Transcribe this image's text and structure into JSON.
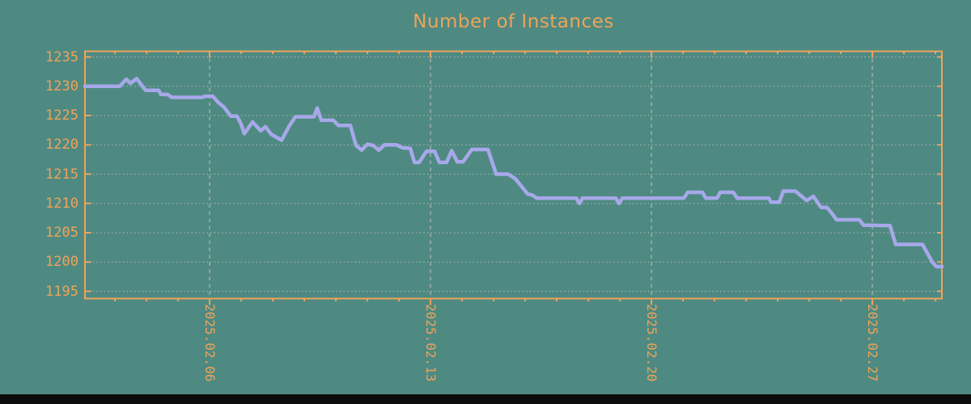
{
  "window": {
    "background_color": "#4e8a82",
    "bottom_bar_color": "#0c0c0c"
  },
  "chart_data": {
    "type": "line",
    "title": "Number of Instances",
    "legend": "none",
    "grid": {
      "horizontal": "dotted at every y tick",
      "vertical": "dashed at every labeled x tick"
    },
    "x_axis": {
      "unit": "date",
      "day_epoch": "day value = days since 2025-02-01 00:00",
      "range_days": [
        1.05,
        28.21
      ],
      "major_ticks": [
        {
          "day": 5,
          "label": "2025.02.06"
        },
        {
          "day": 12,
          "label": "2025.02.13"
        },
        {
          "day": 19,
          "label": "2025.02.20"
        },
        {
          "day": 26,
          "label": "2025.02.27"
        }
      ],
      "minor_tick_interval_days": 1
    },
    "y_axis": {
      "label": "",
      "range": [
        1193.8,
        1236.0
      ],
      "ticks": [
        1195,
        1200,
        1205,
        1210,
        1215,
        1220,
        1225,
        1230,
        1235
      ]
    },
    "series": [
      {
        "name": "instances",
        "points": [
          [
            1.05,
            1230
          ],
          [
            2.15,
            1230
          ],
          [
            2.36,
            1231.2
          ],
          [
            2.49,
            1230.5
          ],
          [
            2.69,
            1231.3
          ],
          [
            2.97,
            1229.3
          ],
          [
            3.38,
            1229.3
          ],
          [
            3.46,
            1228.6
          ],
          [
            3.67,
            1228.6
          ],
          [
            3.79,
            1228.1
          ],
          [
            4.77,
            1228.1
          ],
          [
            4.85,
            1228.3
          ],
          [
            5.1,
            1228.3
          ],
          [
            5.28,
            1227.2
          ],
          [
            5.46,
            1226.4
          ],
          [
            5.67,
            1224.9
          ],
          [
            5.87,
            1224.9
          ],
          [
            6.0,
            1223.5
          ],
          [
            6.1,
            1221.9
          ],
          [
            6.36,
            1223.9
          ],
          [
            6.62,
            1222.4
          ],
          [
            6.77,
            1223.1
          ],
          [
            6.95,
            1221.8
          ],
          [
            7.28,
            1220.8
          ],
          [
            7.51,
            1223.1
          ],
          [
            7.72,
            1224.8
          ],
          [
            8.31,
            1224.8
          ],
          [
            8.41,
            1226.3
          ],
          [
            8.54,
            1224.2
          ],
          [
            8.92,
            1224.2
          ],
          [
            9.08,
            1223.3
          ],
          [
            9.46,
            1223.3
          ],
          [
            9.64,
            1219.9
          ],
          [
            9.82,
            1219.1
          ],
          [
            10.0,
            1220.1
          ],
          [
            10.18,
            1219.9
          ],
          [
            10.36,
            1219.1
          ],
          [
            10.54,
            1220.0
          ],
          [
            10.92,
            1220.0
          ],
          [
            11.11,
            1219.5
          ],
          [
            11.36,
            1219.4
          ],
          [
            11.49,
            1217.0
          ],
          [
            11.64,
            1217.0
          ],
          [
            11.87,
            1218.9
          ],
          [
            12.13,
            1218.9
          ],
          [
            12.28,
            1217.0
          ],
          [
            12.51,
            1217.0
          ],
          [
            12.67,
            1219.0
          ],
          [
            12.85,
            1217.1
          ],
          [
            13.03,
            1217.1
          ],
          [
            13.31,
            1219.2
          ],
          [
            13.82,
            1219.2
          ],
          [
            14.08,
            1215.0
          ],
          [
            14.46,
            1215.0
          ],
          [
            14.69,
            1214.2
          ],
          [
            15.08,
            1211.6
          ],
          [
            15.23,
            1211.4
          ],
          [
            15.36,
            1210.9
          ],
          [
            16.62,
            1210.9
          ],
          [
            16.72,
            1210.0
          ],
          [
            16.82,
            1210.9
          ],
          [
            17.87,
            1210.9
          ],
          [
            17.97,
            1210.0
          ],
          [
            18.08,
            1210.9
          ],
          [
            20.03,
            1210.9
          ],
          [
            20.15,
            1211.9
          ],
          [
            20.62,
            1211.9
          ],
          [
            20.72,
            1210.9
          ],
          [
            21.08,
            1210.9
          ],
          [
            21.18,
            1211.9
          ],
          [
            21.59,
            1211.9
          ],
          [
            21.72,
            1210.9
          ],
          [
            22.72,
            1210.9
          ],
          [
            22.79,
            1210.2
          ],
          [
            23.05,
            1210.2
          ],
          [
            23.18,
            1212.1
          ],
          [
            23.56,
            1212.1
          ],
          [
            23.92,
            1210.5
          ],
          [
            24.13,
            1211.2
          ],
          [
            24.38,
            1209.3
          ],
          [
            24.56,
            1209.3
          ],
          [
            24.72,
            1208.3
          ],
          [
            24.87,
            1207.2
          ],
          [
            25.59,
            1207.2
          ],
          [
            25.72,
            1206.3
          ],
          [
            26.56,
            1206.2
          ],
          [
            26.74,
            1203.0
          ],
          [
            27.59,
            1203.0
          ],
          [
            27.9,
            1200.0
          ],
          [
            28.03,
            1199.2
          ],
          [
            28.21,
            1199.2
          ]
        ]
      }
    ],
    "colors": {
      "axis_and_labels": "#efa35a",
      "title": "#efa35a",
      "line": "#a7a8e9",
      "grid": "#b6b6b6"
    }
  }
}
